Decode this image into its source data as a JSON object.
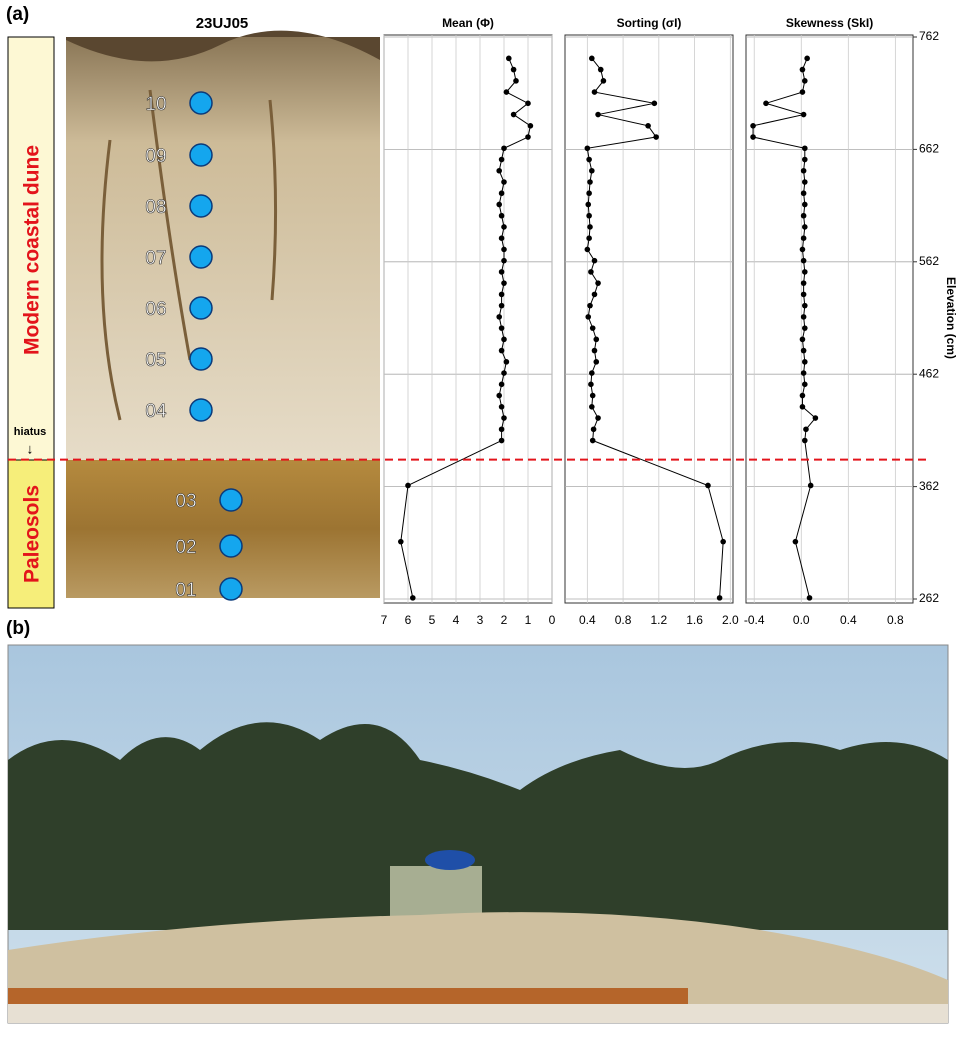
{
  "panel_labels": [
    "(a)",
    "(b)"
  ],
  "section_title": "23UJ05",
  "units": [
    {
      "label": "Modern coastal  dune"
    },
    {
      "label": "Paleosols"
    }
  ],
  "hiatus": {
    "label": "hiatus",
    "elevation": 386
  },
  "samples": [
    "10",
    "09",
    "08",
    "07",
    "06",
    "05",
    "04",
    "03",
    "02",
    "01"
  ],
  "elevation_axis": {
    "label": "Elevation (cm)",
    "ylim": [
      262,
      762
    ],
    "yticks": [
      262,
      362,
      462,
      562,
      662,
      762
    ],
    "values": [
      743,
      733,
      723,
      713,
      703,
      693,
      683,
      673,
      663,
      653,
      643,
      633,
      623,
      613,
      603,
      593,
      583,
      573,
      563,
      553,
      543,
      533,
      523,
      513,
      503,
      493,
      483,
      473,
      463,
      453,
      443,
      433,
      423,
      413,
      403,
      363,
      313,
      263
    ]
  },
  "chart_data": [
    {
      "type": "line",
      "title": "Mean (Φ)",
      "color": "#000000",
      "grid": true,
      "xlim": [
        7,
        0
      ],
      "xticks": [
        7,
        6,
        5,
        4,
        3,
        2,
        1,
        0
      ],
      "values": [
        1.8,
        1.6,
        1.5,
        1.9,
        1.0,
        1.6,
        0.9,
        1.0,
        2.0,
        2.1,
        2.2,
        2.0,
        2.1,
        2.2,
        2.1,
        2.0,
        2.1,
        2.0,
        2.0,
        2.1,
        2.0,
        2.1,
        2.1,
        2.2,
        2.1,
        2.0,
        2.1,
        1.9,
        2.0,
        2.1,
        2.2,
        2.1,
        2.0,
        2.1,
        2.1,
        6.0,
        6.3,
        5.8
      ]
    },
    {
      "type": "line",
      "title": "Sorting (σI)",
      "color": "#000000",
      "grid": true,
      "xlim": [
        0.15,
        2.03
      ],
      "xticks": [
        0.4,
        0.8,
        1.2,
        1.6,
        {
          "value": 2,
          "label": "2.0"
        }
      ],
      "values": [
        0.45,
        0.55,
        0.58,
        0.48,
        1.15,
        0.52,
        1.08,
        1.17,
        0.4,
        0.42,
        0.45,
        0.43,
        0.42,
        0.41,
        0.42,
        0.43,
        0.42,
        0.4,
        0.48,
        0.44,
        0.52,
        0.48,
        0.43,
        0.41,
        0.46,
        0.5,
        0.48,
        0.5,
        0.45,
        0.44,
        0.46,
        0.45,
        0.52,
        0.47,
        0.46,
        1.75,
        1.92,
        1.88
      ]
    },
    {
      "type": "line",
      "title": "Skewness (SkI)",
      "color": "#000000",
      "grid": true,
      "xlim": [
        -0.47,
        0.95
      ],
      "xticks": [
        -0.4,
        {
          "value": 0,
          "label": "0.0"
        },
        0.4,
        0.8
      ],
      "values": [
        0.05,
        0.01,
        0.03,
        0.01,
        -0.3,
        0.02,
        -0.41,
        -0.41,
        0.03,
        0.03,
        0.02,
        0.03,
        0.02,
        0.03,
        0.02,
        0.03,
        0.02,
        0.01,
        0.02,
        0.03,
        0.02,
        0.02,
        0.03,
        0.02,
        0.03,
        0.01,
        0.02,
        0.03,
        0.02,
        0.03,
        0.01,
        0.01,
        0.12,
        0.04,
        0.03,
        0.08,
        -0.05,
        0.07
      ]
    }
  ]
}
